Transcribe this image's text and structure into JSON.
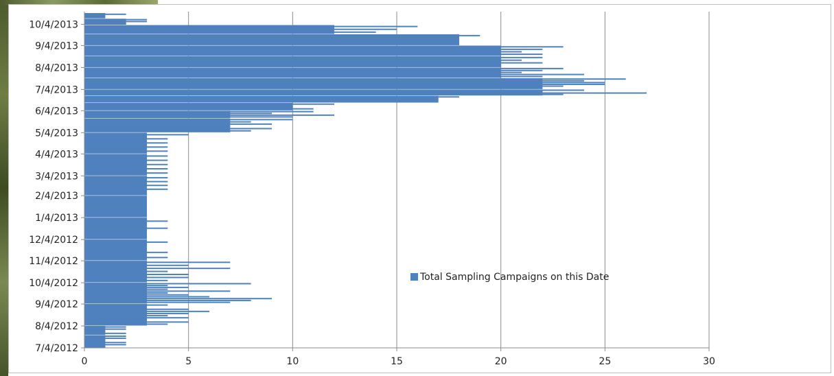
{
  "chart_data": {
    "type": "bar",
    "orientation": "horizontal",
    "title": "",
    "xlabel": "",
    "ylabel": "",
    "xlim": [
      0,
      30
    ],
    "x_ticks": [
      0,
      5,
      10,
      15,
      20,
      25,
      30
    ],
    "y_tick_labels": [
      "7/4/2012",
      "8/4/2012",
      "9/4/2012",
      "10/4/2012",
      "11/4/2012",
      "12/4/2012",
      "1/4/2013",
      "2/4/2013",
      "3/4/2013",
      "4/4/2013",
      "5/4/2013",
      "6/4/2013",
      "7/4/2013",
      "8/4/2013",
      "9/4/2013",
      "10/4/2013"
    ],
    "date_range": [
      "7/4/2012",
      "10/20/2013"
    ],
    "grid": "vertical",
    "legend": "center-right",
    "color": "#4f81bd",
    "series": [
      {
        "name": "Total Sampling Campaigns on this Date",
        "segments": [
          {
            "from": "7/4/2012",
            "to": "7/22/2012",
            "value": 1,
            "peaks": [
              2,
              2,
              1,
              2,
              2,
              1
            ]
          },
          {
            "from": "7/23/2012",
            "to": "8/4/2012",
            "value": 1,
            "peaks": [
              2,
              2,
              1,
              2
            ]
          },
          {
            "from": "8/5/2012",
            "to": "9/4/2012",
            "value": 3,
            "peaks": [
              4,
              3,
              5,
              6,
              5,
              4,
              5,
              3,
              5,
              4
            ]
          },
          {
            "from": "9/5/2012",
            "to": "10/4/2012",
            "value": 3,
            "peaks": [
              8,
              4,
              5,
              4,
              7,
              4,
              5,
              6,
              9,
              8,
              7
            ]
          },
          {
            "from": "10/5/2012",
            "to": "11/4/2012",
            "value": 3,
            "peaks": [
              7,
              5,
              7,
              4,
              5,
              5,
              4
            ]
          },
          {
            "from": "11/5/2012",
            "to": "12/4/2012",
            "value": 3,
            "peaks": [
              4,
              3,
              4,
              4
            ]
          },
          {
            "from": "12/5/2012",
            "to": "1/4/2013",
            "value": 3,
            "peaks": [
              4,
              4,
              3
            ]
          },
          {
            "from": "1/5/2013",
            "to": "2/4/2013",
            "value": 3,
            "peaks": [
              3,
              3,
              3
            ]
          },
          {
            "from": "2/5/2013",
            "to": "3/4/2013",
            "value": 3,
            "peaks": [
              4,
              4,
              4,
              4,
              3
            ]
          },
          {
            "from": "3/5/2013",
            "to": "4/4/2013",
            "value": 3,
            "peaks": [
              4,
              4,
              4,
              4,
              4
            ]
          },
          {
            "from": "4/5/2013",
            "to": "5/4/2013",
            "value": 3,
            "peaks": [
              5,
              4,
              4,
              4,
              4
            ]
          },
          {
            "from": "5/5/2013",
            "to": "5/24/2013",
            "value": 7,
            "peaks": [
              10,
              8,
              9,
              7,
              9,
              8
            ]
          },
          {
            "from": "5/25/2013",
            "to": "6/4/2013",
            "value": 7,
            "peaks": [
              11,
              9,
              12,
              10
            ]
          },
          {
            "from": "6/5/2013",
            "to": "6/15/2013",
            "value": 10,
            "peaks": [
              12,
              10,
              11
            ]
          },
          {
            "from": "6/16/2013",
            "to": "6/25/2013",
            "value": 17,
            "peaks": [
              18,
              17,
              16
            ]
          },
          {
            "from": "6/26/2013",
            "to": "7/4/2013",
            "value": 22,
            "peaks": [
              24,
              22,
              27,
              23
            ]
          },
          {
            "from": "7/5/2013",
            "to": "7/20/2013",
            "value": 22,
            "peaks": [
              26,
              24,
              25,
              25,
              23,
              22
            ]
          },
          {
            "from": "7/21/2013",
            "to": "8/4/2013",
            "value": 20,
            "peaks": [
              23,
              22,
              21,
              24,
              22
            ]
          },
          {
            "from": "8/5/2013",
            "to": "8/20/2013",
            "value": 20,
            "peaks": [
              22,
              21,
              22,
              20
            ]
          },
          {
            "from": "8/21/2013",
            "to": "9/4/2013",
            "value": 20,
            "peaks": [
              23,
              22,
              21,
              22
            ]
          },
          {
            "from": "9/5/2013",
            "to": "9/20/2013",
            "value": 18,
            "peaks": [
              19,
              18,
              17,
              16
            ]
          },
          {
            "from": "9/21/2013",
            "to": "10/3/2013",
            "value": 12,
            "peaks": [
              16,
              15,
              14
            ]
          },
          {
            "from": "10/4/2013",
            "to": "10/12/2013",
            "value": 2,
            "peaks": [
              3,
              3,
              2
            ]
          },
          {
            "from": "10/13/2013",
            "to": "10/20/2013",
            "value": 1,
            "peaks": [
              2,
              1
            ]
          }
        ]
      }
    ]
  }
}
